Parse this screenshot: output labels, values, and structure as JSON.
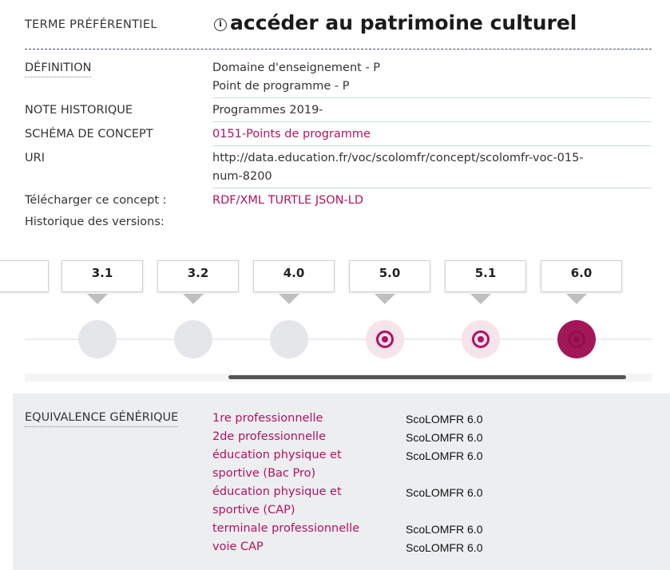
{
  "preferred": {
    "label": "TERME PRÉFÉRENTIEL",
    "info_glyph": "i",
    "term": "accéder au patrimoine culturel"
  },
  "definition": {
    "label": "DÉFINITION",
    "lines": [
      "Domaine d'enseignement - P",
      "Point de programme - P"
    ]
  },
  "historical_note": {
    "label": "NOTE HISTORIQUE",
    "value": "Programmes 2019-"
  },
  "concept_scheme": {
    "label": "SCHÉMA DE CONCEPT",
    "value": "0151-Points de programme"
  },
  "uri": {
    "label": "URI",
    "line1": "http://data.education.fr/voc/scolomfr/concept/scolomfr-voc-015-",
    "line2": "num-8200"
  },
  "download": {
    "label": "Télécharger ce concept :",
    "formats": [
      "RDF/XML",
      "TURTLE",
      "JSON-LD"
    ]
  },
  "history": {
    "label": "Historique des versions:",
    "versions": [
      {
        "label": "",
        "state": "inactive"
      },
      {
        "label": "3.1",
        "state": "inactive"
      },
      {
        "label": "3.2",
        "state": "inactive"
      },
      {
        "label": "4.0",
        "state": "inactive"
      },
      {
        "label": "5.0",
        "state": "available"
      },
      {
        "label": "5.1",
        "state": "available"
      },
      {
        "label": "6.0",
        "state": "current"
      }
    ]
  },
  "equivalence": {
    "label": "EQUIVALENCE GÉNÉRIQUE",
    "items": [
      {
        "lines": [
          "1re professionnelle"
        ],
        "source": "ScoLOMFR 6.0"
      },
      {
        "lines": [
          "2de professionnelle"
        ],
        "source": "ScoLOMFR 6.0"
      },
      {
        "lines": [
          "éducation physique et",
          "sportive (Bac Pro)"
        ],
        "source": "ScoLOMFR 6.0"
      },
      {
        "lines": [
          "éducation physique et",
          "sportive (CAP)"
        ],
        "source": "ScoLOMFR 6.0"
      },
      {
        "lines": [
          "terminale professionnelle"
        ],
        "source": "ScoLOMFR 6.0"
      },
      {
        "lines": [
          "voie CAP"
        ],
        "source": "ScoLOMFR 6.0"
      }
    ]
  },
  "colors": {
    "accent": "#b0135f",
    "current": "#a31657",
    "divider": "#3b4b6b",
    "panel": "#eceef0"
  }
}
